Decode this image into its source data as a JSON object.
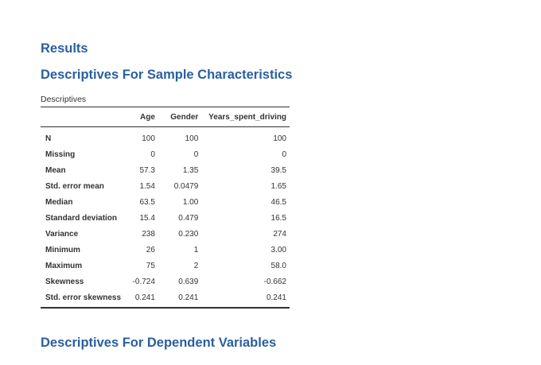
{
  "headings": {
    "results": "Results",
    "sample_characteristics": "Descriptives For Sample Characteristics",
    "dependent_variables": "Descriptives For Dependent Variables"
  },
  "table": {
    "caption": "Descriptives",
    "columns": [
      "",
      "Age",
      "Gender",
      "Years_spent_driving"
    ],
    "rows": [
      {
        "label": "N",
        "values": [
          "100",
          "100",
          "100"
        ]
      },
      {
        "label": "Missing",
        "values": [
          "0",
          "0",
          "0"
        ]
      },
      {
        "label": "Mean",
        "values": [
          "57.3",
          "1.35",
          "39.5"
        ]
      },
      {
        "label": "Std. error mean",
        "values": [
          "1.54",
          "0.0479",
          "1.65"
        ]
      },
      {
        "label": "Median",
        "values": [
          "63.5",
          "1.00",
          "46.5"
        ]
      },
      {
        "label": "Standard deviation",
        "values": [
          "15.4",
          "0.479",
          "16.5"
        ]
      },
      {
        "label": "Variance",
        "values": [
          "238",
          "0.230",
          "274"
        ]
      },
      {
        "label": "Minimum",
        "values": [
          "26",
          "1",
          "3.00"
        ]
      },
      {
        "label": "Maximum",
        "values": [
          "75",
          "2",
          "58.0"
        ]
      },
      {
        "label": "Skewness",
        "values": [
          "-0.724",
          "0.639",
          "-0.662"
        ]
      },
      {
        "label": "Std. error skewness",
        "values": [
          "0.241",
          "0.241",
          "0.241"
        ]
      }
    ]
  }
}
